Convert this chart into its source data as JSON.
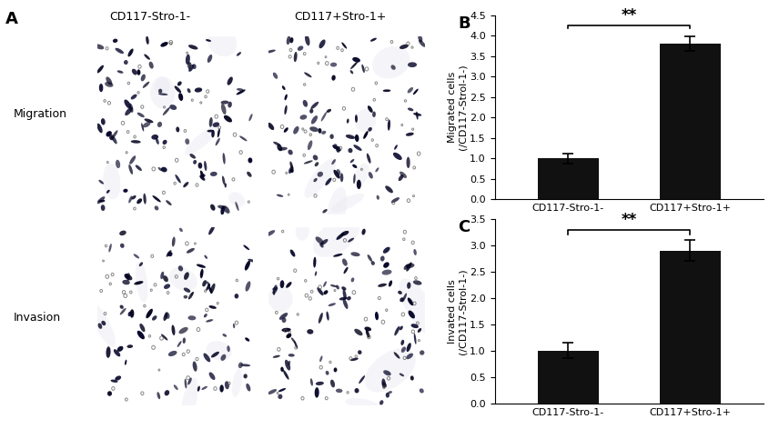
{
  "panel_A_label": "A",
  "panel_B_label": "B",
  "panel_C_label": "C",
  "col_labels": [
    "CD117-Stro-1-",
    "CD117+Stro-1+"
  ],
  "row_labels": [
    "Migration",
    "Invasion"
  ],
  "bar_categories": [
    "CD117-Stro-1-",
    "CD117+Stro-1+"
  ],
  "bar_color": "#111111",
  "migration_values": [
    1.0,
    3.8
  ],
  "migration_errors": [
    0.12,
    0.18
  ],
  "migration_ylim": [
    0,
    4.5
  ],
  "migration_yticks": [
    0,
    0.5,
    1.0,
    1.5,
    2.0,
    2.5,
    3.0,
    3.5,
    4.0,
    4.5
  ],
  "migration_ylabel": "Migrated cells\n(/CD117-Strol-1-)",
  "invasion_values": [
    1.0,
    2.9
  ],
  "invasion_errors": [
    0.15,
    0.2
  ],
  "invasion_ylim": [
    0,
    3.5
  ],
  "invasion_yticks": [
    0,
    0.5,
    1.0,
    1.5,
    2.0,
    2.5,
    3.0,
    3.5
  ],
  "invasion_ylabel": "Invated cells\n(/CD117-Strol-1-)",
  "significance_text": "**",
  "background_color": "#ffffff",
  "img_bg_color": "#dcdce8",
  "cell_dark_color": "#1a1a50",
  "cell_ring_color": "#555555",
  "font_size_labels": 9,
  "font_size_ticks": 8,
  "font_size_panel": 13,
  "font_size_sig": 12
}
